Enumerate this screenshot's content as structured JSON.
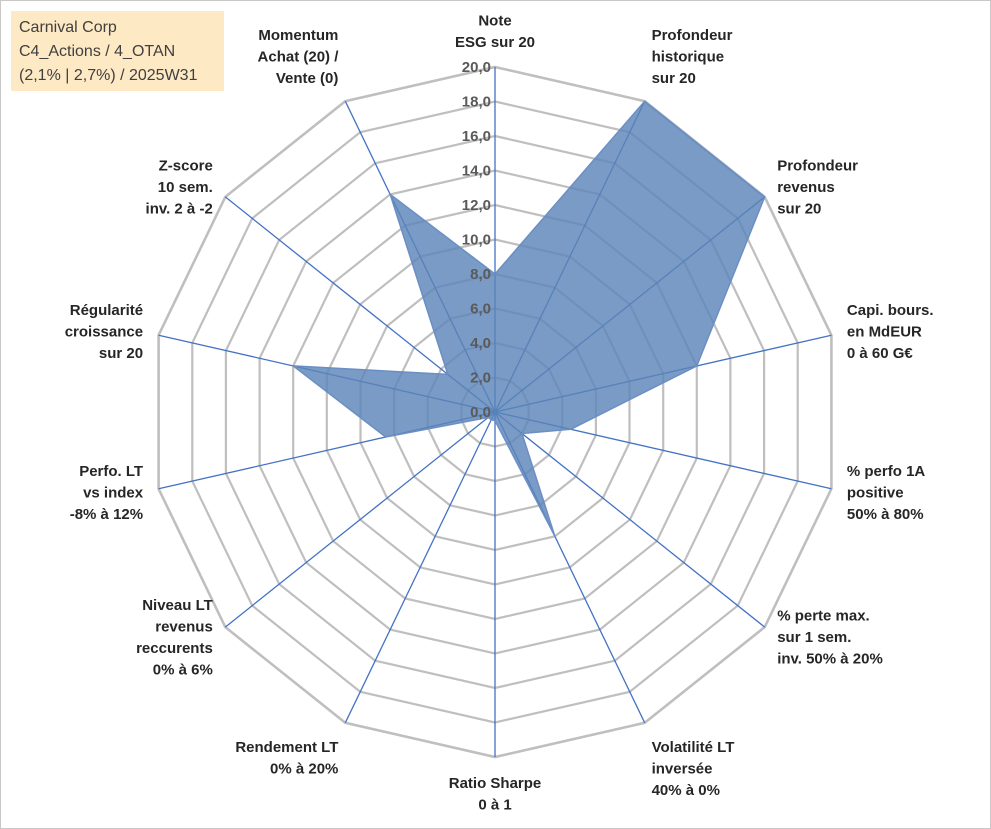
{
  "info_box": {
    "line1": "Carnival Corp",
    "line2": "C4_Actions / 4_OTAN",
    "line3": "(2,1% | 2,7%) / 2025W31"
  },
  "colors": {
    "grid": "#bfbfbf",
    "spoke": "#4472c4",
    "fill": "#5b85b8",
    "stroke": "#6b8fc4",
    "info_bg": "#fde9c4"
  },
  "chart_data": {
    "type": "radar",
    "title": "",
    "rlim": [
      0,
      20
    ],
    "rings": 10,
    "ticks": [
      "0,0",
      "2,0",
      "4,0",
      "6,0",
      "8,0",
      "10,0",
      "12,0",
      "14,0",
      "16,0",
      "18,0",
      "20,0"
    ],
    "categories": [
      [
        "Note",
        "ESG sur 20"
      ],
      [
        "Profondeur",
        "historique",
        "sur 20"
      ],
      [
        "Profondeur",
        "revenus",
        "sur 20"
      ],
      [
        "Capi. bours.",
        "en MdEUR",
        "0 à 60 G€"
      ],
      [
        "% perfo 1A",
        "positive",
        "50% à 80%"
      ],
      [
        "% perte max.",
        "sur 1 sem.",
        "inv. 50% à 20%"
      ],
      [
        "Volatilité LT",
        "inversée",
        "40% à 0%"
      ],
      [
        "Ratio Sharpe",
        "0 à 1"
      ],
      [
        "Rendement LT",
        "0% à 20%"
      ],
      [
        "Niveau LT",
        "revenus",
        "reccurents",
        "0% à 6%"
      ],
      [
        "Perfo. LT",
        "vs index",
        "-8% à 12%"
      ],
      [
        "Régularité",
        "croissance",
        "sur 20"
      ],
      [
        "Z-score",
        "10 sem.",
        "inv. 2 à -2"
      ],
      [
        "Momentum",
        "Achat (20) /",
        "Vente (0)"
      ]
    ],
    "series": [
      {
        "values": [
          8.0,
          20.0,
          20.0,
          12.0,
          4.5,
          2.0,
          8.0,
          0.5,
          0.5,
          0.5,
          6.5,
          12.0,
          3.5,
          14.0
        ]
      }
    ],
    "grid": true,
    "legend": "none"
  }
}
